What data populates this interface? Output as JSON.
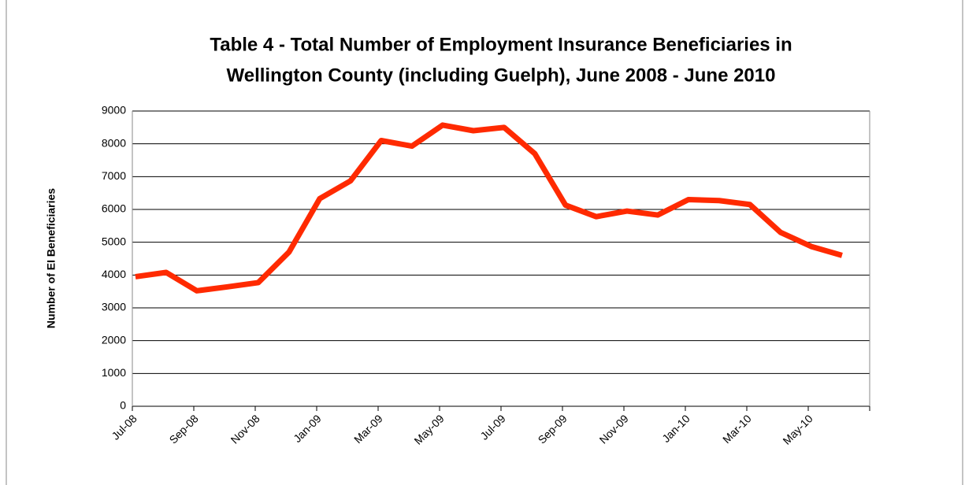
{
  "chart_data": {
    "type": "line",
    "title": [
      "Table 4 - Total Number of Employment Insurance Beneficiaries in",
      "Wellington County (including Guelph), June 2008 - June 2010"
    ],
    "y_label": "Number  of EI Beneficiaries",
    "categories": [
      "Jul-08",
      null,
      "Sep-08",
      null,
      "Nov-08",
      null,
      "Jan-09",
      null,
      "Mar-09",
      null,
      "May-09",
      null,
      "Jul-09",
      null,
      "Sep-09",
      null,
      "Nov-09",
      null,
      "Jan-10",
      null,
      "Mar-10",
      null,
      "May-10",
      null
    ],
    "series": [
      {
        "name": "EI Beneficiaries",
        "color": "#ff2a00",
        "values": [
          3950,
          4080,
          3520,
          3640,
          3770,
          4700,
          6330,
          6870,
          8100,
          7930,
          8570,
          8400,
          8500,
          7700,
          6130,
          5780,
          5950,
          5830,
          6300,
          6270,
          6150,
          5300,
          4870,
          4600
        ]
      }
    ],
    "ylim": [
      0,
      9000
    ],
    "yticks": [
      0,
      1000,
      2000,
      3000,
      4000,
      5000,
      6000,
      7000,
      8000,
      9000
    ],
    "grid": true
  }
}
